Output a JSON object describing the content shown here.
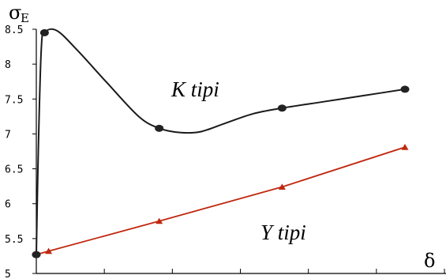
{
  "chart_data": {
    "type": "line",
    "ylabel": "σ",
    "ylabel_subscript": "E",
    "xlabel": "δ",
    "ylim": [
      5,
      8.5
    ],
    "xlim": [
      0,
      10
    ],
    "y_ticks": [
      "5",
      "5.5",
      "6",
      "6.5",
      "7",
      "7.5",
      "8",
      "8.5"
    ],
    "x_tick_count": 6,
    "grid": false,
    "series": [
      {
        "name": "K tipi",
        "color": "#1a1a1a",
        "marker": "circle",
        "points": [
          [
            0,
            5.27
          ],
          [
            0.2,
            8.45
          ],
          [
            3.0,
            7.08
          ],
          [
            6.0,
            7.37
          ],
          [
            9.0,
            7.64
          ]
        ],
        "curve": [
          [
            0,
            5.27
          ],
          [
            0.05,
            6.8
          ],
          [
            0.12,
            8.2
          ],
          [
            0.2,
            8.45
          ],
          [
            0.5,
            8.48
          ],
          [
            1.0,
            8.2
          ],
          [
            1.7,
            7.75
          ],
          [
            2.5,
            7.25
          ],
          [
            3.0,
            7.08
          ],
          [
            3.5,
            7.02
          ],
          [
            4.0,
            7.03
          ],
          [
            4.6,
            7.15
          ],
          [
            5.3,
            7.29
          ],
          [
            6.0,
            7.37
          ],
          [
            7.0,
            7.46
          ],
          [
            8.0,
            7.55
          ],
          [
            9.0,
            7.64
          ]
        ]
      },
      {
        "name": "Y tipi",
        "color": "#c0280f",
        "marker": "triangle",
        "points": [
          [
            0,
            5.27
          ],
          [
            0.3,
            5.32
          ],
          [
            3.0,
            5.75
          ],
          [
            6.0,
            6.24
          ],
          [
            9.0,
            6.81
          ]
        ],
        "curve": [
          [
            0,
            5.27
          ],
          [
            0.3,
            5.32
          ],
          [
            3.0,
            5.75
          ],
          [
            6.0,
            6.24
          ],
          [
            9.0,
            6.81
          ]
        ]
      }
    ],
    "annotations": {
      "k_label": "K tipi",
      "y_label": "Y tipi"
    }
  }
}
